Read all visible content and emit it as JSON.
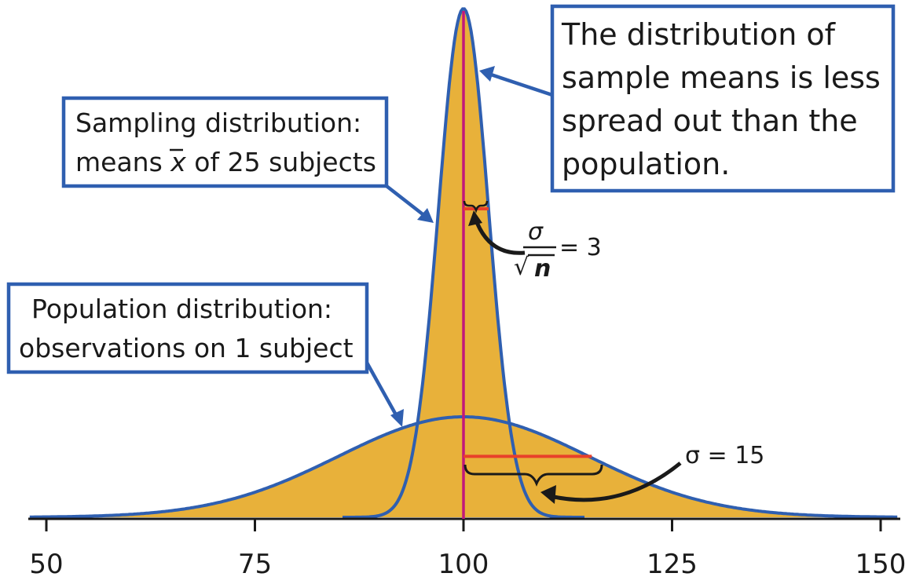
{
  "chart_data": {
    "type": "area",
    "title": "",
    "xlabel": "",
    "ylabel": "",
    "xlim": [
      48,
      152
    ],
    "xticks": [
      50,
      75,
      100,
      125,
      150
    ],
    "mean": 100,
    "series": [
      {
        "name": "Population distribution",
        "type": "normal",
        "mean": 100,
        "sd": 15,
        "fill_color": "#e8b13a",
        "line_color": "#2f5fb0"
      },
      {
        "name": "Sampling distribution",
        "type": "normal",
        "mean": 100,
        "sd": 3,
        "n": 25,
        "fill_color": "#e8b13a",
        "line_color": "#2f5fb0"
      }
    ],
    "mean_line_color": "#c2187a",
    "sd_bar_color": "#e8402a",
    "annotations": {
      "sampling_box": {
        "line1": "Sampling distribution:",
        "line2_prefix": "means ",
        "line2_symbol": "x",
        "line2_suffix": " of 25 subjects"
      },
      "population_box": {
        "line1": "Population distribution:",
        "line2": "observations on 1 subject"
      },
      "spread_box": {
        "lines": [
          "The distribution of",
          "sample means is less",
          "spread out than the",
          "population."
        ]
      },
      "sampling_sd": {
        "numerator": "σ",
        "denominator": "n",
        "radical": "√",
        "equals": "= 3",
        "value": 3
      },
      "population_sd": {
        "label": "σ = 15",
        "value": 15
      }
    }
  }
}
